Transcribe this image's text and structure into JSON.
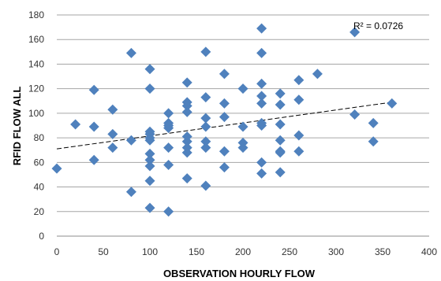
{
  "chart_data": {
    "type": "scatter",
    "title": "",
    "xlabel": "OBSERVATION HOURLY FLOW",
    "ylabel": "RFID FLOW ALL",
    "xlim": [
      0,
      400
    ],
    "ylim": [
      0,
      180
    ],
    "x_ticks": [
      0,
      50,
      100,
      150,
      200,
      250,
      300,
      350,
      400
    ],
    "y_ticks": [
      0,
      20,
      40,
      60,
      80,
      100,
      120,
      140,
      160,
      180
    ],
    "grid": "horizontal",
    "marker": "diamond",
    "marker_color": "#4f81bd",
    "trendline": {
      "type": "linear",
      "style": "dashed",
      "color": "#000000",
      "x": [
        0,
        360
      ],
      "y": [
        71,
        109
      ]
    },
    "annotation": "R² = 0.0726",
    "x": [
      0,
      20,
      40,
      40,
      40,
      60,
      60,
      60,
      80,
      80,
      80,
      100,
      100,
      100,
      100,
      100,
      100,
      100,
      100,
      100,
      100,
      100,
      120,
      120,
      120,
      120,
      120,
      120,
      120,
      140,
      140,
      140,
      140,
      140,
      140,
      140,
      140,
      140,
      160,
      160,
      160,
      160,
      160,
      160,
      160,
      180,
      180,
      180,
      180,
      180,
      200,
      200,
      200,
      200,
      220,
      220,
      220,
      220,
      220,
      220,
      220,
      220,
      220,
      240,
      240,
      240,
      240,
      240,
      240,
      240,
      260,
      260,
      260,
      260,
      280,
      320,
      320,
      340,
      340,
      360
    ],
    "y": [
      55,
      91,
      119,
      89,
      62,
      103,
      83,
      72,
      149,
      78,
      36,
      136,
      120,
      85,
      80,
      67,
      62,
      57,
      45,
      23,
      83,
      78,
      100,
      92,
      88,
      72,
      58,
      20,
      90,
      125,
      109,
      106,
      101,
      81,
      77,
      68,
      47,
      72,
      150,
      113,
      96,
      89,
      77,
      72,
      41,
      132,
      108,
      97,
      69,
      56,
      120,
      89,
      76,
      72,
      169,
      149,
      124,
      114,
      108,
      90,
      60,
      51,
      92,
      116,
      107,
      91,
      78,
      69,
      52,
      68,
      127,
      111,
      82,
      69,
      132,
      166,
      99,
      92,
      77,
      108
    ]
  }
}
